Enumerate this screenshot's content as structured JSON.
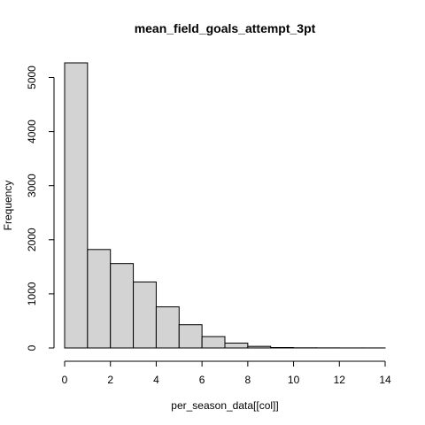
{
  "chart_data": {
    "type": "bar",
    "title": "mean_field_goals_attempt_3pt",
    "xlabel": "per_season_data[[col]]",
    "ylabel": "Frequency",
    "bins": [
      {
        "start": 0,
        "end": 1,
        "count": 5270
      },
      {
        "start": 1,
        "end": 2,
        "count": 1820
      },
      {
        "start": 2,
        "end": 3,
        "count": 1560
      },
      {
        "start": 3,
        "end": 4,
        "count": 1220
      },
      {
        "start": 4,
        "end": 5,
        "count": 760
      },
      {
        "start": 5,
        "end": 6,
        "count": 430
      },
      {
        "start": 6,
        "end": 7,
        "count": 210
      },
      {
        "start": 7,
        "end": 8,
        "count": 90
      },
      {
        "start": 8,
        "end": 9,
        "count": 30
      },
      {
        "start": 9,
        "end": 10,
        "count": 8
      },
      {
        "start": 10,
        "end": 11,
        "count": 3
      },
      {
        "start": 11,
        "end": 12,
        "count": 2
      },
      {
        "start": 12,
        "end": 13,
        "count": 1
      },
      {
        "start": 13,
        "end": 14,
        "count": 1
      }
    ],
    "xlim": [
      0,
      14
    ],
    "ylim": [
      0,
      5270
    ],
    "xticks": [
      0,
      2,
      4,
      6,
      8,
      10,
      12,
      14
    ],
    "yticks": [
      0,
      1000,
      2000,
      3000,
      4000,
      5000
    ],
    "grid": false,
    "bar_color": "#d3d3d3",
    "border_color": "#000000"
  }
}
